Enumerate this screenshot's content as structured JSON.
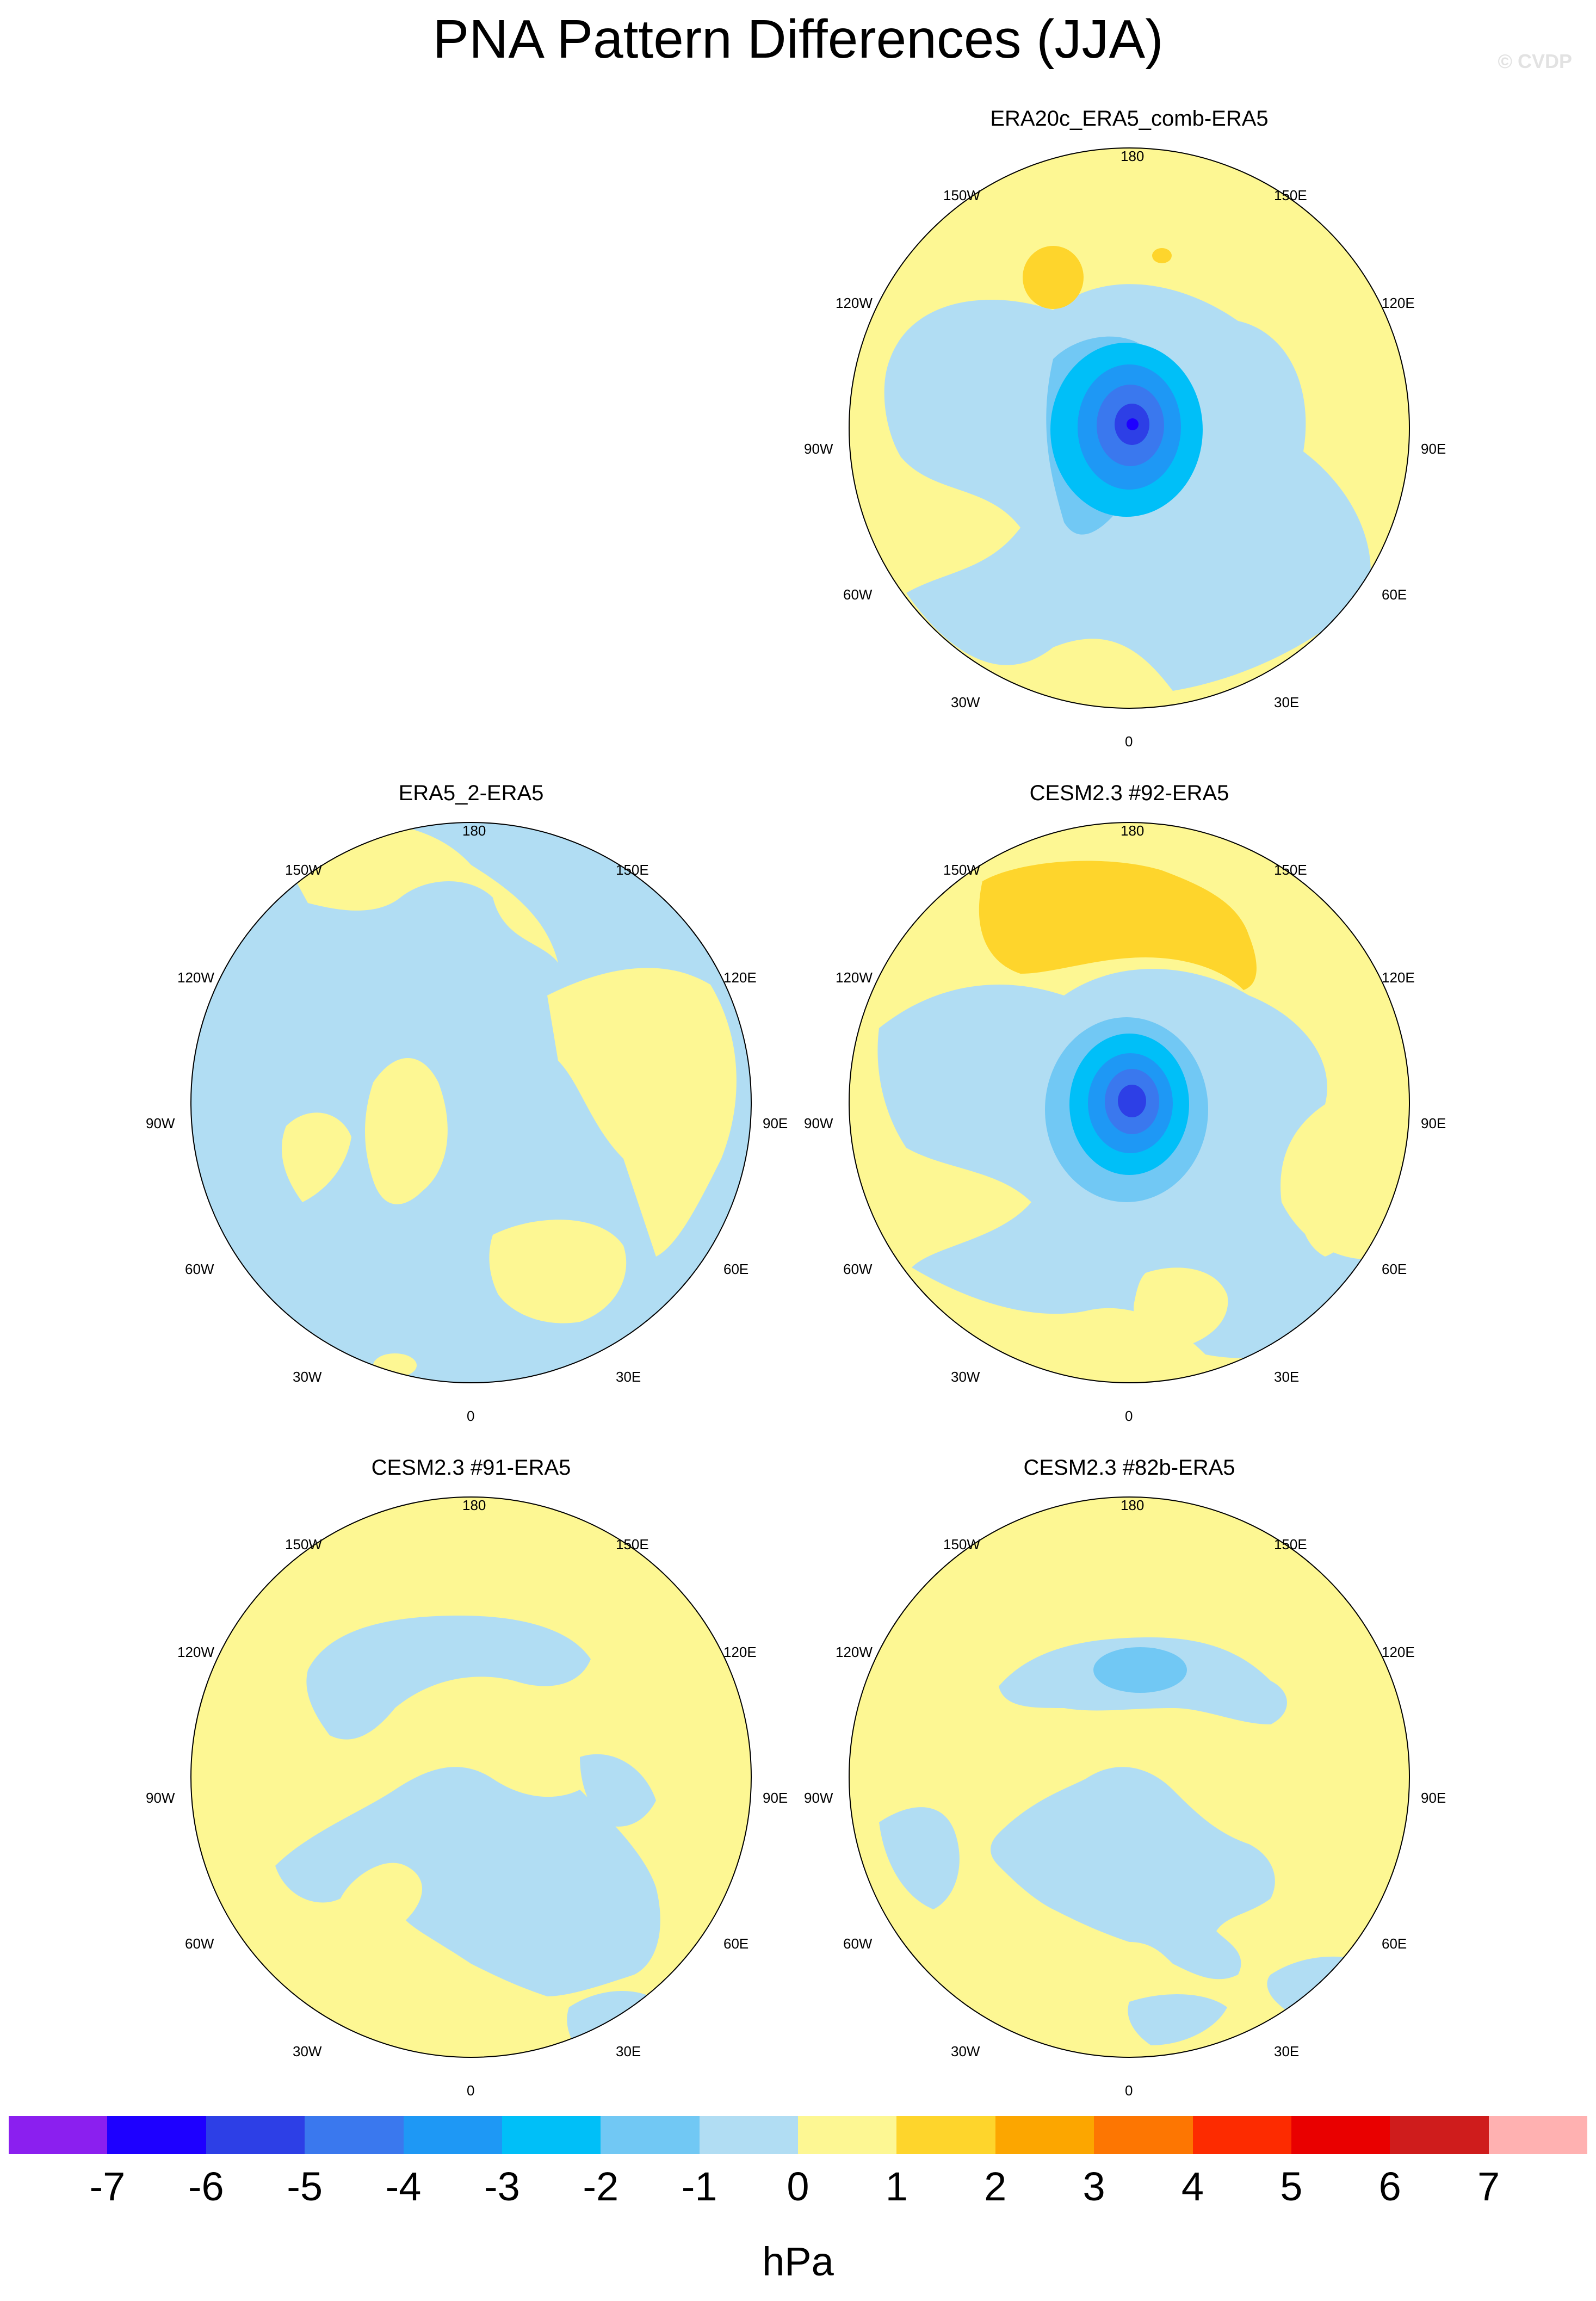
{
  "title": "PNA Pattern Differences (JJA)",
  "watermark": "© CVDP",
  "panels": [
    {
      "title": "ERA20c_ERA5_comb-ERA5"
    },
    {
      "title": "ERA5_2-ERA5"
    },
    {
      "title": "CESM2.3 #92-ERA5"
    },
    {
      "title": "CESM2.3 #91-ERA5"
    },
    {
      "title": "CESM2.3 #82b-ERA5"
    }
  ],
  "lon_labels": [
    "180",
    "150E",
    "120E",
    "90E",
    "60E",
    "30E",
    "0",
    "30W",
    "60W",
    "90W",
    "120W",
    "150W"
  ],
  "colorbar": {
    "colors": [
      "#8b1fef",
      "#1e00ff",
      "#2d3fe6",
      "#3a78ee",
      "#1e98f5",
      "#00bff8",
      "#71c8f4",
      "#b1ddf3",
      "#fdf793",
      "#fed52c",
      "#fca600",
      "#fd7602",
      "#fd2b00",
      "#e90000",
      "#cf1c1c",
      "#ffb1b1"
    ],
    "ticks": [
      "-7",
      "-6",
      "-5",
      "-4",
      "-3",
      "-2",
      "-1",
      "0",
      "1",
      "2",
      "3",
      "4",
      "5",
      "6",
      "7"
    ],
    "units": "hPa"
  }
}
